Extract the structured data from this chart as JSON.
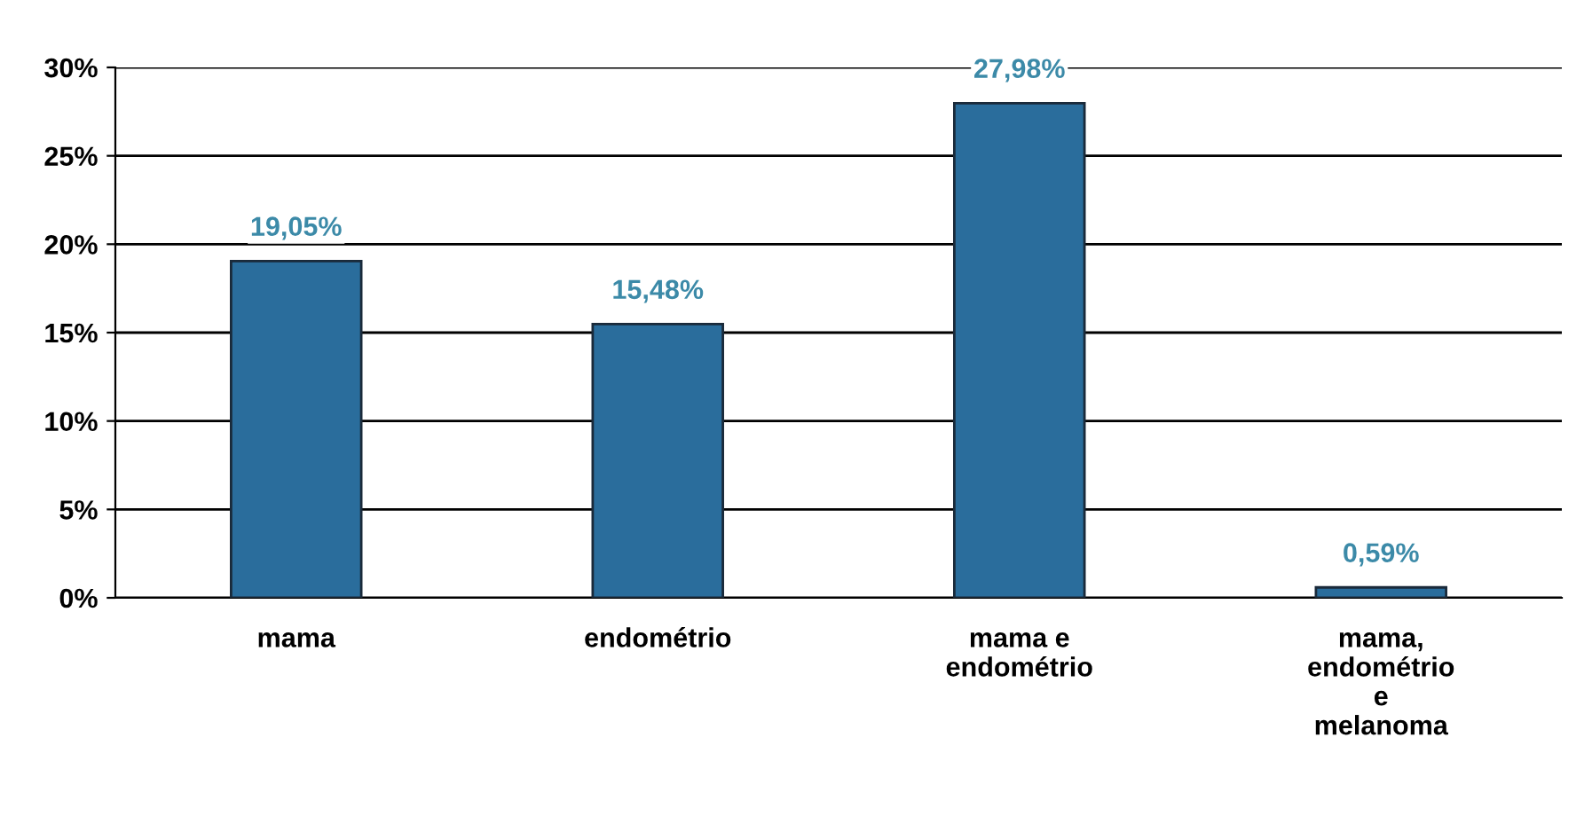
{
  "chart_data": {
    "type": "bar",
    "categories": [
      "mama",
      "endométrio",
      "mama e\nendométrio",
      "mama,\nendométrio\ne\nmelanoma"
    ],
    "values": [
      19.05,
      15.48,
      27.98,
      0.59
    ],
    "value_labels": [
      "19,05%",
      "15,48%",
      "27,98%",
      "0,59%"
    ],
    "color": "#2a6d9c",
    "ylim": [
      0,
      30
    ],
    "yticks": [
      {
        "value": 0,
        "label": "0%"
      },
      {
        "value": 5,
        "label": "5%"
      },
      {
        "value": 10,
        "label": "10%"
      },
      {
        "value": 15,
        "label": "15%"
      },
      {
        "value": 20,
        "label": "20%"
      },
      {
        "value": 25,
        "label": "25%"
      },
      {
        "value": 30,
        "label": "30%"
      }
    ],
    "grid": "y",
    "legend": false
  }
}
